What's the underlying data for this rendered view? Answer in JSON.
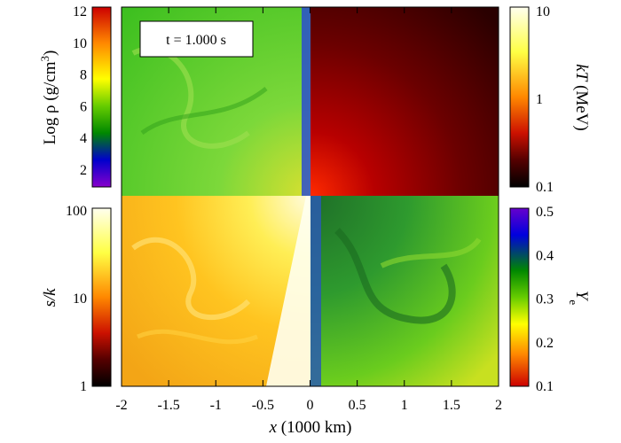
{
  "timestamp": "t = 1.000 s",
  "xaxis": {
    "title_var": "x",
    "title_rest": " (1000 km)",
    "ticks": [
      "-2",
      "-1.5",
      "-1",
      "-0.5",
      "0",
      "0.5",
      "1",
      "1.5",
      "2"
    ]
  },
  "colorbars": {
    "density": {
      "label_main": "Log ρ (g/cm",
      "label_exp": "3",
      "label_close": ")",
      "ticks": [
        "12",
        "10",
        "8",
        "6",
        "4",
        "2"
      ],
      "colors": [
        "#cc0000",
        "#ff8800",
        "#ffff00",
        "#66cc00",
        "#008800",
        "#0000cc",
        "#8800cc"
      ]
    },
    "temperature": {
      "label_var": "kT",
      "label_rest": " (MeV)",
      "ticks": [
        "10",
        "1",
        "0.1"
      ],
      "colors": [
        "#ffffee",
        "#ffff44",
        "#ff8800",
        "#cc1100",
        "#550000",
        "#000000"
      ]
    },
    "entropy": {
      "label": "s/k",
      "ticks": [
        "100",
        "10",
        "1"
      ],
      "colors": [
        "#ffffee",
        "#ffff44",
        "#ff8800",
        "#cc1100",
        "#550000",
        "#000000"
      ]
    },
    "ye": {
      "label_main": "Y",
      "label_sub": "e",
      "ticks": [
        "0.5",
        "0.4",
        "0.3",
        "0.2",
        "0.1"
      ],
      "colors": [
        "#6600cc",
        "#0000dd",
        "#008800",
        "#66cc00",
        "#ffff00",
        "#ff8800",
        "#cc0000"
      ]
    }
  },
  "panels": {
    "density_color": "#5fcc2a",
    "temperature_color": "#6a0000",
    "entropy_color": "#f4b01e",
    "ye_color": "#2e9a2e"
  }
}
